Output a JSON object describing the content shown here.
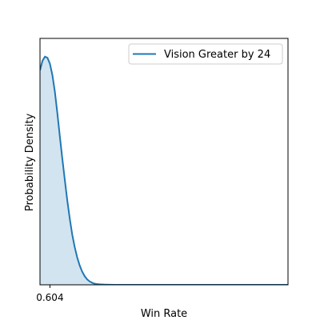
{
  "chart_data": {
    "type": "area",
    "title": "",
    "xlabel": "Win Rate",
    "ylabel": "Probability Density",
    "xlim": [
      0.6,
      0.7
    ],
    "ylim": [
      0,
      1.08
    ],
    "x_ticks": [
      0.604
    ],
    "x_tick_labels": [
      "0.604"
    ],
    "y_ticks": [],
    "grid": false,
    "legend": {
      "position": "top-right"
    },
    "series": [
      {
        "name": "Vision Greater by 24",
        "color": "#1f77b4",
        "fill_color": "#1f77b4",
        "fill_opacity": 0.2,
        "x": [
          0.6,
          0.601,
          0.602,
          0.603,
          0.604,
          0.605,
          0.606,
          0.607,
          0.608,
          0.609,
          0.61,
          0.611,
          0.612,
          0.613,
          0.614,
          0.615,
          0.616,
          0.617,
          0.618,
          0.619,
          0.62,
          0.621,
          0.622,
          0.623,
          0.624,
          0.626,
          0.628,
          0.63,
          0.632,
          0.635,
          0.64,
          0.65,
          0.66,
          0.68,
          0.7
        ],
        "values": [
          0.94,
          0.982,
          1.0,
          0.995,
          0.969,
          0.919,
          0.846,
          0.752,
          0.651,
          0.553,
          0.46,
          0.37,
          0.29,
          0.22,
          0.165,
          0.12,
          0.085,
          0.058,
          0.038,
          0.024,
          0.015,
          0.009,
          0.005,
          0.003,
          0.002,
          0.001,
          0.0005,
          0.0002,
          0.0001,
          0.0,
          0.0,
          0.0,
          0.0,
          0.0,
          0.0
        ]
      }
    ]
  }
}
